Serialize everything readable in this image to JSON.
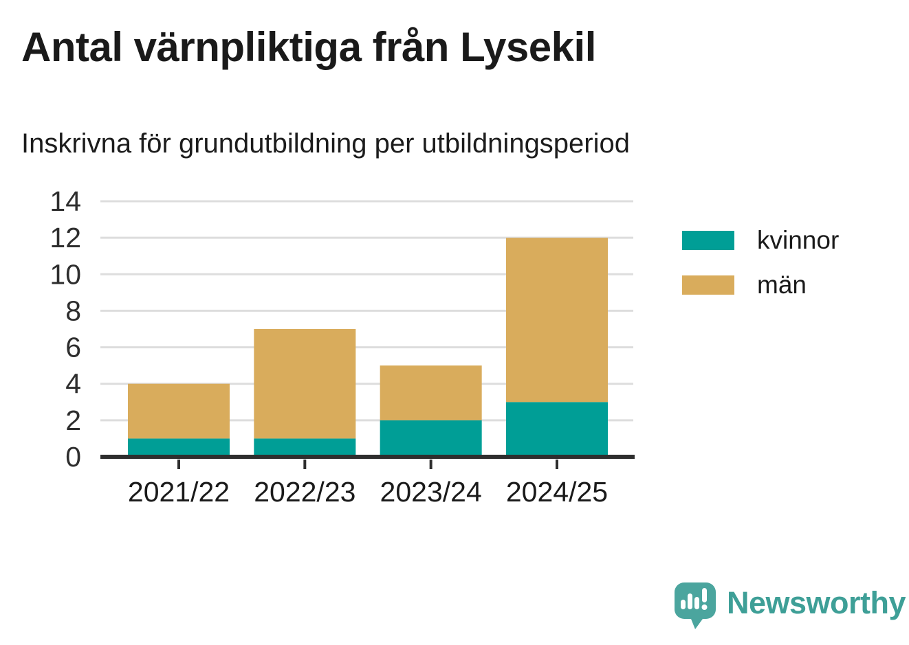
{
  "chart_data": {
    "type": "bar",
    "stacked": true,
    "title": "Antal värnpliktiga från Lysekil",
    "subtitle": "Inskrivna för grundutbildning per utbildningsperiod",
    "categories": [
      "2021/22",
      "2022/23",
      "2023/24",
      "2024/25"
    ],
    "series": [
      {
        "name": "kvinnor",
        "color": "#009E96",
        "values": [
          1,
          1,
          2,
          3
        ]
      },
      {
        "name": "män",
        "color": "#D9AC5C",
        "values": [
          3,
          6,
          3,
          9
        ]
      }
    ],
    "totals": [
      4,
      7,
      5,
      12
    ],
    "ylim": [
      0,
      14
    ],
    "yticks": [
      0,
      2,
      4,
      6,
      8,
      10,
      12,
      14
    ],
    "xlabel": "",
    "ylabel": "",
    "grid": true,
    "legend_position": "right"
  },
  "colors": {
    "text": "#1A1A1A",
    "axis": "#2E2E2E",
    "grid": "#DDDDDD",
    "background": "#FFFFFF"
  },
  "brand": {
    "name": "Newsworthy",
    "icon": "speech-bubble-bar-chart-icon",
    "icon_color": "#4BA59E",
    "text_color": "#3E9F97"
  }
}
